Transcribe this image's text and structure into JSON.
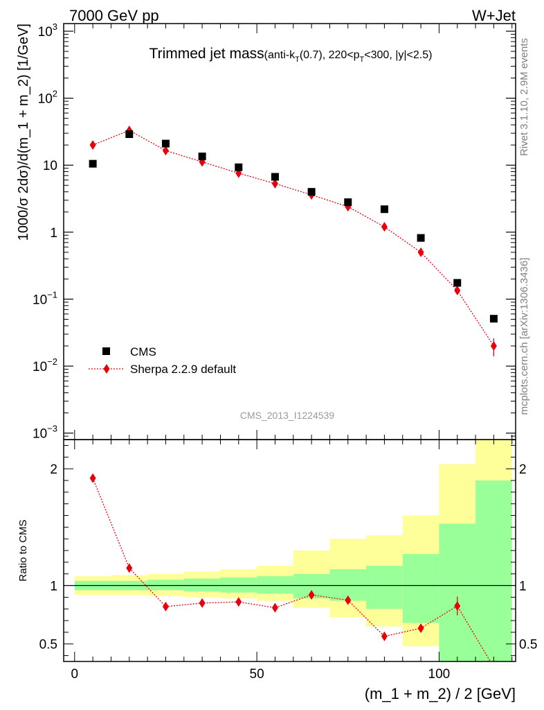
{
  "header": {
    "left": "7000 GeV pp",
    "right": "W+Jet"
  },
  "plot_title": {
    "main": "Trimmed jet mass",
    "sub_a": "(anti-k",
    "sub_b": "T",
    "sub_c": "(0.7), 220<p",
    "sub_d": "T",
    "sub_e": "<300, |y|<2.5)"
  },
  "side_labels": {
    "rivet": "Rivet 3.1.10,  2.9M events",
    "mcplots": "mcplots.cern.ch [arXiv:1306.3436]"
  },
  "analysis_id": "CMS_2013_I1224539",
  "legend": {
    "cms": "CMS",
    "sherpa": "Sherpa 2.2.9 default"
  },
  "colors": {
    "data": "#000000",
    "mc": "#e8000b",
    "band_inner": "#99ff99",
    "band_outer": "#ffff99"
  },
  "chart_data": [
    {
      "type": "scatter",
      "title": "",
      "xlabel": "(m_1 + m_2) / 2 [GeV]",
      "ylabel": "1000/σ 2dσ)/d(m_1 + m_2) [1/GeV]",
      "yscale": "log",
      "xlim": [
        -3,
        121
      ],
      "ylim": [
        0.0008,
        1300
      ],
      "y_ticks": [
        {
          "v": 0.001,
          "label": "10",
          "sup": "−3"
        },
        {
          "v": 0.01,
          "label": "10",
          "sup": "−2"
        },
        {
          "v": 0.1,
          "label": "10",
          "sup": "−1"
        },
        {
          "v": 1,
          "label": "1",
          "sup": ""
        },
        {
          "v": 10,
          "label": "10",
          "sup": ""
        },
        {
          "v": 100,
          "label": "10",
          "sup": "2"
        },
        {
          "v": 1000,
          "label": "10",
          "sup": "3"
        }
      ],
      "legend_position": "lower-left",
      "series": [
        {
          "name": "CMS",
          "marker": "square",
          "x": [
            5,
            15,
            25,
            35,
            45,
            55,
            65,
            75,
            85,
            95,
            105,
            115
          ],
          "y": [
            10.5,
            29,
            21,
            13.5,
            9.3,
            6.7,
            4.0,
            2.8,
            2.2,
            0.82,
            0.175,
            0.051
          ]
        },
        {
          "name": "Sherpa 2.2.9 default",
          "marker": "diamond",
          "x": [
            5,
            15,
            25,
            35,
            45,
            55,
            65,
            75,
            85,
            95,
            105,
            115
          ],
          "y": [
            20,
            33,
            16.5,
            11.2,
            7.6,
            5.3,
            3.6,
            2.4,
            1.2,
            0.5,
            0.135,
            0.02
          ],
          "yerr": [
            0,
            0,
            0,
            0,
            0,
            0,
            0,
            0,
            0,
            0,
            0.015,
            0.006
          ]
        }
      ]
    },
    {
      "type": "line",
      "title": "",
      "xlabel": "(m_1 + m_2) / 2 [GeV]",
      "ylabel": "Ratio to CMS",
      "xlim": [
        -3,
        121
      ],
      "ylim": [
        0.35,
        2.25
      ],
      "x_ticks": [
        0,
        50,
        100
      ],
      "y_ticks": [
        0.5,
        1,
        2
      ],
      "bands": {
        "edges": [
          0,
          10,
          20,
          30,
          40,
          50,
          60,
          70,
          80,
          90,
          100,
          110,
          120
        ],
        "inner_low": [
          0.96,
          0.96,
          0.96,
          0.95,
          0.94,
          0.93,
          0.89,
          0.87,
          0.8,
          0.68,
          0.28,
          0.15
        ],
        "inner_high": [
          1.04,
          1.04,
          1.05,
          1.06,
          1.07,
          1.08,
          1.1,
          1.14,
          1.17,
          1.27,
          1.53,
          1.9
        ],
        "outer_low": [
          0.92,
          0.92,
          0.91,
          0.9,
          0.89,
          0.87,
          0.81,
          0.73,
          0.65,
          0.48,
          0.28,
          0.15
        ],
        "outer_high": [
          1.08,
          1.09,
          1.1,
          1.12,
          1.14,
          1.17,
          1.3,
          1.4,
          1.43,
          1.6,
          2.04,
          2.3
        ]
      },
      "reference_line": 1,
      "series": [
        {
          "name": "Sherpa 2.2.9 default",
          "x": [
            5,
            15,
            25,
            35,
            45,
            55,
            65,
            75,
            85,
            95,
            105,
            115
          ],
          "y": [
            1.92,
            1.15,
            0.82,
            0.85,
            0.86,
            0.81,
            0.92,
            0.875,
            0.565,
            0.635,
            0.825,
            0.3
          ],
          "yerr": [
            0,
            0,
            0,
            0,
            0,
            0,
            0,
            0,
            0.02,
            0.03,
            0.08,
            0.05
          ]
        }
      ]
    }
  ]
}
